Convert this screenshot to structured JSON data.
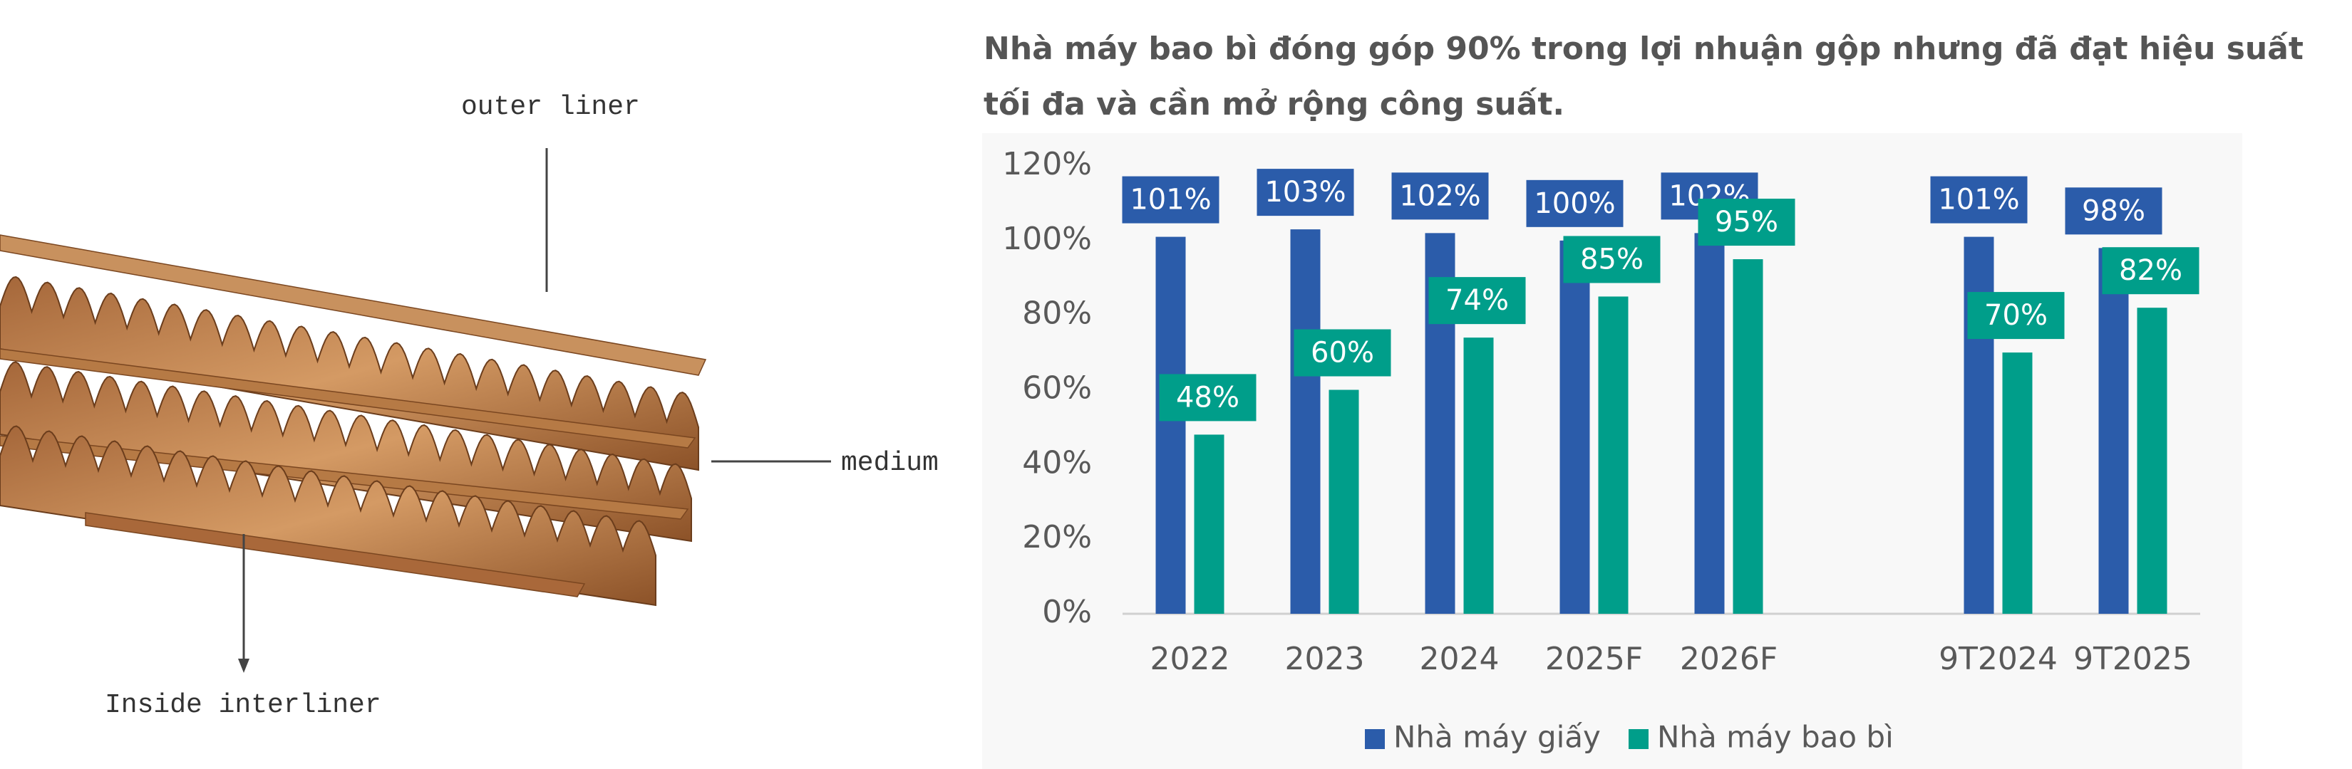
{
  "diagram": {
    "labels": [
      "outer liner",
      "medium",
      "Inside interliner"
    ]
  },
  "chart_data": {
    "type": "bar",
    "title": "Nhà máy bao bì đóng góp 90% trong lợi nhuận gộp nhưng đã đạt hiệu suất tối đa và cần mở rộng công suất.",
    "categories": [
      "2022",
      "2023",
      "2024",
      "2025F",
      "2026F",
      null,
      "9T2024",
      "9T2025"
    ],
    "series": [
      {
        "name": "Nhà máy giấy",
        "color": "#2b5caa",
        "values": [
          101,
          103,
          102,
          100,
          102,
          null,
          101,
          98
        ],
        "value_labels": [
          "101%",
          "103%",
          "102%",
          "100%",
          "102%",
          null,
          "101%",
          "98%"
        ]
      },
      {
        "name": "Nhà máy bao bì",
        "color": "#009e8a",
        "values": [
          48,
          60,
          74,
          85,
          95,
          null,
          70,
          82
        ],
        "value_labels": [
          "48%",
          "60%",
          "74%",
          "85%",
          "95%",
          null,
          "70%",
          "82%"
        ]
      }
    ],
    "ylim": [
      0,
      120
    ],
    "yticks": [
      {
        "value": 0,
        "label": "0%"
      },
      {
        "value": 20,
        "label": "20%"
      },
      {
        "value": 40,
        "label": "40%"
      },
      {
        "value": 60,
        "label": "60%"
      },
      {
        "value": 80,
        "label": "80%"
      },
      {
        "value": 100,
        "label": "100%"
      },
      {
        "value": 120,
        "label": "120%"
      }
    ],
    "grid": false,
    "legend": "bottom"
  }
}
